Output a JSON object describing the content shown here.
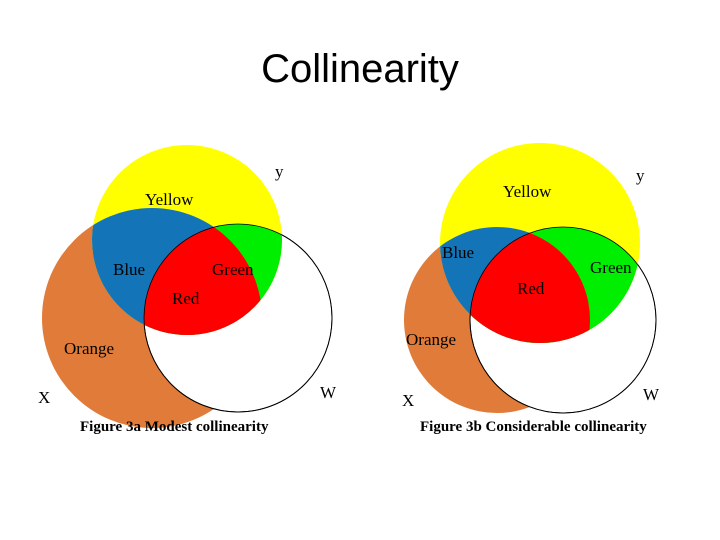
{
  "title": "Collinearity",
  "figures": [
    {
      "y": "y",
      "yellow": "Yellow",
      "blue": "Blue",
      "green": "Green",
      "red": "Red",
      "orange": "Orange",
      "x": "X",
      "w": "W",
      "caption": "Figure 3a Modest collinearity"
    },
    {
      "y": "y",
      "yellow": "Yellow",
      "blue": "Blue",
      "green": "Green",
      "red": "Red",
      "orange": "Orange",
      "x": "X",
      "w": "W",
      "caption": "Figure 3b Considerable collinearity"
    }
  ]
}
